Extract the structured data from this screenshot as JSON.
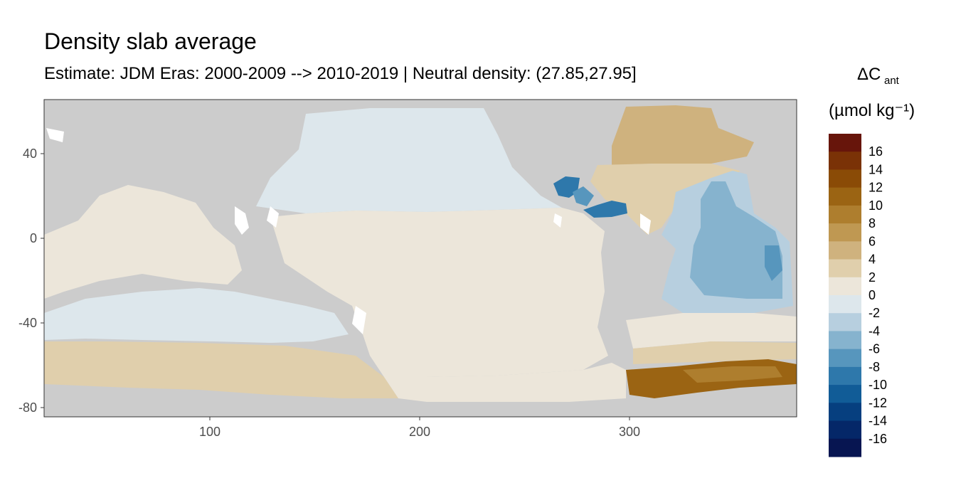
{
  "title": "Density slab average",
  "subtitle": "Estimate: JDM Eras: 2000-2009 --> 2010-2019 | Neutral density: (27.85,27.95]",
  "legend": {
    "title_line1": "ΔC",
    "title_sub": "ant",
    "title_line2": "(µmol kg⁻¹)",
    "labels": [
      "16",
      "14",
      "12",
      "10",
      "8",
      "6",
      "4",
      "2",
      "0",
      "-2",
      "-4",
      "-6",
      "-8",
      "-10",
      "-12",
      "-14",
      "-16"
    ],
    "colors": [
      "#67150b",
      "#7a3206",
      "#8a4b06",
      "#9b6413",
      "#ae7e2e",
      "#bf9852",
      "#cfb27e",
      "#e0cfac",
      "#ece6da",
      "#dde7ec",
      "#b7cfdf",
      "#86b3ce",
      "#5796bd",
      "#2e78ab",
      "#115c97",
      "#063f7f",
      "#052768",
      "#071551"
    ]
  },
  "axes": {
    "x_ticks": [
      "100",
      "200",
      "300"
    ],
    "y_ticks": [
      "40",
      "0",
      "-40",
      "-80"
    ]
  },
  "chart_data": {
    "type": "heatmap",
    "xlim": [
      20,
      380
    ],
    "ylim": [
      -85,
      65
    ],
    "x_ticks": [
      100,
      200,
      300
    ],
    "y_ticks": [
      40,
      0,
      -40,
      -80
    ],
    "land_color": "#cccccc",
    "regions": [
      {
        "name": "north-pacific",
        "value": -1
      },
      {
        "name": "tropical-pacific",
        "value": 1
      },
      {
        "name": "indian-ocean",
        "value": 1
      },
      {
        "name": "south-pacific-band",
        "value": -1
      },
      {
        "name": "southern-ocean",
        "value": 2
      },
      {
        "name": "north-atlantic",
        "value": 4
      },
      {
        "name": "subpolar-north-atlantic",
        "value": 6
      },
      {
        "name": "south-atlantic",
        "value": -4
      },
      {
        "name": "east-atlantic-core",
        "value": -7
      },
      {
        "name": "gulf-of-mexico",
        "value": -8
      },
      {
        "name": "caribbean",
        "value": -7
      },
      {
        "name": "weddell-sea",
        "value": 10
      }
    ]
  }
}
